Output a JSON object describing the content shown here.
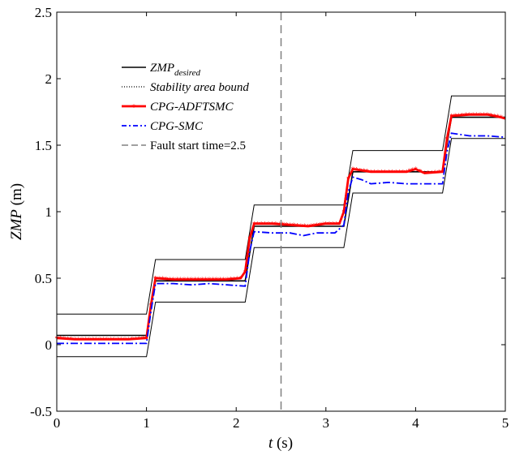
{
  "chart_data": {
    "type": "line",
    "title": "",
    "xlabel": {
      "italic": "t",
      "rest": " (s)"
    },
    "ylabel": {
      "italic": "ZMP",
      "rest": " (m)"
    },
    "xlim": [
      0,
      5
    ],
    "ylim": [
      -0.5,
      2.5
    ],
    "xticks": [
      "0",
      "1",
      "2",
      "3",
      "4",
      "5"
    ],
    "yticks": [
      "-0.5",
      "0",
      "0.5",
      "1",
      "1.5",
      "2",
      "2.5"
    ],
    "xtick_values": [
      0,
      1,
      2,
      3,
      4,
      5
    ],
    "ytick_values": [
      -0.5,
      0,
      0.5,
      1,
      1.5,
      2,
      2.5
    ],
    "grid": false,
    "legend_position": "upper-left",
    "legend": [
      {
        "main": "ZMP",
        "sub": "desired",
        "italic": true,
        "style": "solid",
        "color": "#000000"
      },
      {
        "main": "Stability area bound",
        "sub": "",
        "italic": true,
        "style": "dotted",
        "color": "#000000"
      },
      {
        "main": "CPG-ADFTSMC",
        "sub": "",
        "italic": true,
        "style": "star",
        "color": "#ff0000"
      },
      {
        "main": "CPG-SMC",
        "sub": "",
        "italic": true,
        "style": "dashdot",
        "color": "#0000ff"
      },
      {
        "main": "Fault start time=2.5",
        "sub": "",
        "italic": false,
        "style": "dashed",
        "color": "#808080"
      }
    ],
    "series": [
      {
        "name": "ZMP desired",
        "color": "#000000",
        "points": [
          [
            0,
            0.07
          ],
          [
            1.0,
            0.07
          ],
          [
            1.1,
            0.48
          ],
          [
            2.1,
            0.48
          ],
          [
            2.2,
            0.89
          ],
          [
            3.2,
            0.89
          ],
          [
            3.3,
            1.3
          ],
          [
            4.3,
            1.3
          ],
          [
            4.4,
            1.71
          ],
          [
            5.0,
            1.71
          ]
        ]
      },
      {
        "name": "Stability area upper bound",
        "color": "#000000",
        "points": [
          [
            0,
            0.23
          ],
          [
            1.0,
            0.23
          ],
          [
            1.1,
            0.64
          ],
          [
            2.1,
            0.64
          ],
          [
            2.2,
            1.05
          ],
          [
            3.2,
            1.05
          ],
          [
            3.3,
            1.46
          ],
          [
            4.3,
            1.46
          ],
          [
            4.4,
            1.87
          ],
          [
            5.0,
            1.87
          ]
        ]
      },
      {
        "name": "Stability area lower bound",
        "color": "#000000",
        "points": [
          [
            0,
            -0.09
          ],
          [
            1.0,
            -0.09
          ],
          [
            1.1,
            0.32
          ],
          [
            2.1,
            0.32
          ],
          [
            2.2,
            0.73
          ],
          [
            3.2,
            0.73
          ],
          [
            3.3,
            1.14
          ],
          [
            4.3,
            1.14
          ],
          [
            4.4,
            1.55
          ],
          [
            5.0,
            1.55
          ]
        ]
      },
      {
        "name": "CPG-ADFTSMC",
        "color": "#ff0000",
        "points": [
          [
            0,
            0.05
          ],
          [
            0.2,
            0.04
          ],
          [
            0.4,
            0.04
          ],
          [
            0.6,
            0.04
          ],
          [
            0.8,
            0.04
          ],
          [
            1.0,
            0.05
          ],
          [
            1.05,
            0.3
          ],
          [
            1.1,
            0.5
          ],
          [
            1.3,
            0.49
          ],
          [
            1.5,
            0.49
          ],
          [
            1.7,
            0.49
          ],
          [
            1.9,
            0.49
          ],
          [
            2.05,
            0.5
          ],
          [
            2.1,
            0.55
          ],
          [
            2.15,
            0.8
          ],
          [
            2.2,
            0.91
          ],
          [
            2.4,
            0.91
          ],
          [
            2.6,
            0.9
          ],
          [
            2.8,
            0.89
          ],
          [
            2.9,
            0.9
          ],
          [
            3.0,
            0.91
          ],
          [
            3.15,
            0.91
          ],
          [
            3.2,
            1.0
          ],
          [
            3.25,
            1.25
          ],
          [
            3.3,
            1.32
          ],
          [
            3.5,
            1.3
          ],
          [
            3.7,
            1.3
          ],
          [
            3.9,
            1.3
          ],
          [
            4.0,
            1.32
          ],
          [
            4.1,
            1.29
          ],
          [
            4.3,
            1.3
          ],
          [
            4.35,
            1.55
          ],
          [
            4.4,
            1.72
          ],
          [
            4.6,
            1.73
          ],
          [
            4.8,
            1.73
          ],
          [
            4.95,
            1.71
          ],
          [
            5.0,
            1.7
          ]
        ]
      },
      {
        "name": "CPG-SMC",
        "color": "#0000ff",
        "points": [
          [
            0,
            0.01
          ],
          [
            0.3,
            0.01
          ],
          [
            0.6,
            0.01
          ],
          [
            1.0,
            0.01
          ],
          [
            1.05,
            0.25
          ],
          [
            1.1,
            0.46
          ],
          [
            1.3,
            0.46
          ],
          [
            1.5,
            0.45
          ],
          [
            1.7,
            0.46
          ],
          [
            1.9,
            0.45
          ],
          [
            2.1,
            0.44
          ],
          [
            2.15,
            0.7
          ],
          [
            2.2,
            0.85
          ],
          [
            2.4,
            0.84
          ],
          [
            2.6,
            0.84
          ],
          [
            2.75,
            0.82
          ],
          [
            2.9,
            0.84
          ],
          [
            3.1,
            0.84
          ],
          [
            3.2,
            0.9
          ],
          [
            3.25,
            1.15
          ],
          [
            3.3,
            1.26
          ],
          [
            3.4,
            1.24
          ],
          [
            3.5,
            1.21
          ],
          [
            3.7,
            1.22
          ],
          [
            3.9,
            1.21
          ],
          [
            4.0,
            1.21
          ],
          [
            4.3,
            1.21
          ],
          [
            4.35,
            1.45
          ],
          [
            4.4,
            1.59
          ],
          [
            4.6,
            1.57
          ],
          [
            4.8,
            1.57
          ],
          [
            5.0,
            1.56
          ]
        ]
      }
    ],
    "vline": {
      "x": 2.5,
      "color": "#808080"
    }
  }
}
